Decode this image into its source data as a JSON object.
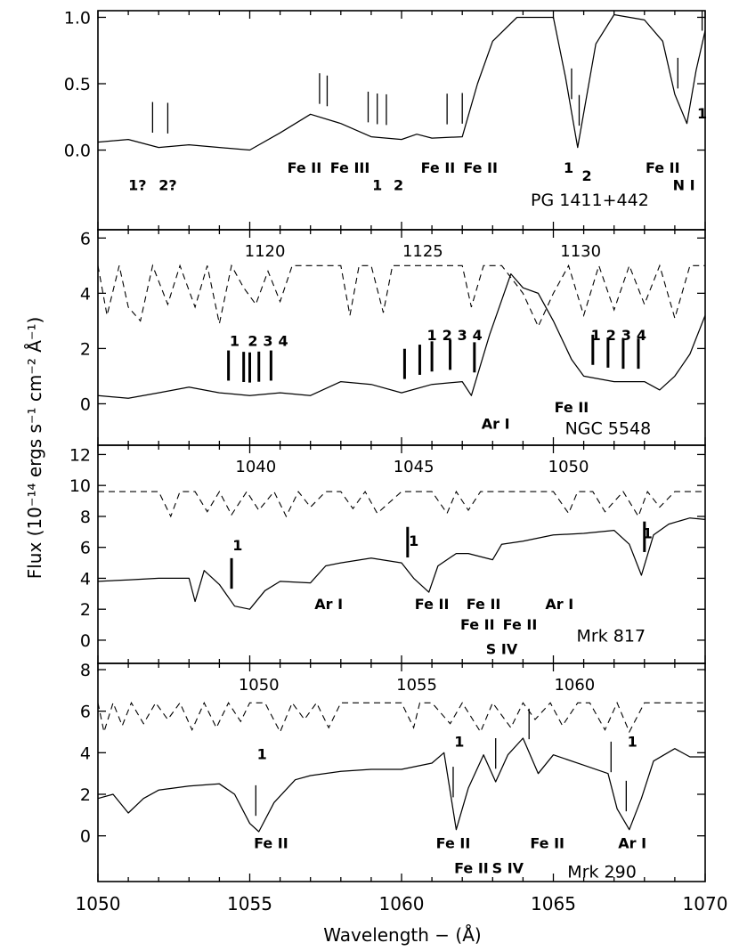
{
  "chart_data": {
    "type": "line",
    "xlabel": "Wavelength − (Å)",
    "ylabel": "Flux (10⁻¹⁴ ergs s⁻¹ cm⁻² Å⁻¹)",
    "x_range": [
      1050,
      1070
    ],
    "x_ticks": [
      "1050",
      "1055",
      "1060",
      "1065",
      "1070"
    ],
    "panels": [
      {
        "name": "PG 1411+442",
        "ylim": [
          -0.6,
          1.05
        ],
        "y_ticks": [
          0.0,
          0.5,
          1.0
        ],
        "y_tick_labels": [
          "0.0",
          "0.5",
          "1.0"
        ],
        "spectrum": {
          "x": [
            1050,
            1051,
            1052,
            1053,
            1054,
            1055,
            1056,
            1057,
            1058,
            1059,
            1060,
            1060.5,
            1061,
            1062,
            1062.5,
            1063,
            1063.8,
            1064.4,
            1065,
            1065.4,
            1065.8,
            1066.4,
            1067,
            1068,
            1068.6,
            1069,
            1069.4,
            1069.7,
            1070
          ],
          "y": [
            0.06,
            0.08,
            0.02,
            0.04,
            0.02,
            0.0,
            0.13,
            0.27,
            0.2,
            0.1,
            0.08,
            0.12,
            0.09,
            0.1,
            0.5,
            0.82,
            1.0,
            1.0,
            1.0,
            0.55,
            0.02,
            0.8,
            1.02,
            0.98,
            0.82,
            0.42,
            0.2,
            0.6,
            0.9
          ]
        },
        "labels": [
          {
            "text": "1?",
            "x": 1051.3,
            "y": -0.3
          },
          {
            "text": "2?",
            "x": 1052.3,
            "y": -0.3
          },
          {
            "text": "Fe II",
            "x": 1056.8,
            "y": -0.17
          },
          {
            "text": "Fe III",
            "x": 1058.3,
            "y": -0.17
          },
          {
            "text": "1",
            "x": 1059.2,
            "y": -0.3
          },
          {
            "text": "2",
            "x": 1059.9,
            "y": -0.3
          },
          {
            "text": "Fe II",
            "x": 1061.2,
            "y": -0.17
          },
          {
            "text": "Fe II",
            "x": 1062.6,
            "y": -0.17
          },
          {
            "text": "1",
            "x": 1065.5,
            "y": -0.17
          },
          {
            "text": "2",
            "x": 1066.1,
            "y": -0.23
          },
          {
            "text": "Fe II",
            "x": 1068.6,
            "y": -0.17
          },
          {
            "text": "N I",
            "x": 1069.3,
            "y": -0.3
          },
          {
            "text": "1",
            "x": 1069.9,
            "y": 0.24
          },
          {
            "text": "PG 1411+442",
            "x": 1066.2,
            "y": -0.42
          }
        ],
        "line_marks": [
          1051.8,
          1052.3,
          1057.3,
          1057.55,
          1058.9,
          1059.2,
          1059.5,
          1061.5,
          1062.0,
          1065.6,
          1065.85,
          1069.1,
          1069.9
        ]
      },
      {
        "name": "NGC 5548",
        "ylim": [
          -1.5,
          6.3
        ],
        "y_ticks": [
          0,
          2,
          4,
          6
        ],
        "y_tick_labels": [
          "0",
          "2",
          "4",
          "6"
        ],
        "top_axis": {
          "labels": [
            "1120",
            "1125",
            "1130"
          ],
          "x": [
            1055.5,
            1060.7,
            1065.9
          ]
        },
        "spectrum": {
          "x": [
            1050,
            1051,
            1052,
            1053,
            1054,
            1055,
            1056,
            1057,
            1058,
            1059,
            1060,
            1061,
            1062,
            1062.3,
            1062.9,
            1063.6,
            1064.0,
            1064.5,
            1065.0,
            1065.6,
            1066.0,
            1067,
            1068,
            1068.5,
            1069,
            1069.5,
            1070
          ],
          "y": [
            0.3,
            0.2,
            0.4,
            0.6,
            0.4,
            0.3,
            0.4,
            0.3,
            0.8,
            0.7,
            0.4,
            0.7,
            0.8,
            0.3,
            2.5,
            4.7,
            4.2,
            4.0,
            3.0,
            1.6,
            1.0,
            0.8,
            0.8,
            0.5,
            1.0,
            1.8,
            3.2
          ]
        },
        "model": {
          "x": [
            1050,
            1050.3,
            1050.7,
            1051.0,
            1051.4,
            1051.8,
            1052.3,
            1052.7,
            1053.2,
            1053.6,
            1054.0,
            1054.4,
            1054.8,
            1055.2,
            1055.6,
            1056.0,
            1056.4,
            1057,
            1058,
            1058.3,
            1058.6,
            1059.0,
            1059.4,
            1059.7,
            1060.1,
            1061,
            1062,
            1062.3,
            1062.7,
            1063.3,
            1064,
            1064.5,
            1065.0,
            1065.5,
            1066.0,
            1066.5,
            1067.0,
            1067.5,
            1068.0,
            1068.5,
            1069.0,
            1069.5,
            1070
          ],
          "y": [
            5.0,
            3.2,
            5.0,
            3.5,
            3.0,
            5.0,
            3.6,
            5.0,
            3.5,
            5.0,
            2.9,
            5.0,
            4.2,
            3.6,
            4.8,
            3.7,
            5.0,
            5.0,
            5.0,
            3.2,
            5.0,
            5.0,
            3.3,
            5.0,
            5.0,
            5.0,
            5.0,
            3.5,
            5.0,
            5.0,
            4.0,
            2.8,
            4.0,
            5.0,
            3.2,
            5.0,
            3.4,
            5.0,
            3.6,
            5.0,
            3.1,
            5.0,
            5.0
          ]
        },
        "labels": [
          {
            "text": "1",
            "x": 1054.5,
            "y": 2.1
          },
          {
            "text": "2",
            "x": 1055.1,
            "y": 2.1
          },
          {
            "text": "3",
            "x": 1055.6,
            "y": 2.1
          },
          {
            "text": "4",
            "x": 1056.1,
            "y": 2.1
          },
          {
            "text": "1",
            "x": 1061.0,
            "y": 2.3
          },
          {
            "text": "2",
            "x": 1061.5,
            "y": 2.3
          },
          {
            "text": "3",
            "x": 1062.0,
            "y": 2.3
          },
          {
            "text": "4",
            "x": 1062.5,
            "y": 2.3
          },
          {
            "text": "1",
            "x": 1066.4,
            "y": 2.3
          },
          {
            "text": "2",
            "x": 1066.9,
            "y": 2.3
          },
          {
            "text": "3",
            "x": 1067.4,
            "y": 2.3
          },
          {
            "text": "4",
            "x": 1067.9,
            "y": 2.3
          },
          {
            "text": "Ar I",
            "x": 1063.1,
            "y": -0.9
          },
          {
            "text": "Fe II",
            "x": 1065.6,
            "y": -0.3
          },
          {
            "text": "NGC 5548",
            "x": 1066.8,
            "y": -1.1
          }
        ],
        "line_marks": [
          1054.3,
          1054.8,
          1055.0,
          1055.3,
          1055.7,
          1060.1,
          1060.6,
          1061.0,
          1061.6,
          1062.4,
          1066.3,
          1066.8,
          1067.3,
          1067.8
        ]
      },
      {
        "name": "Mrk 817",
        "ylim": [
          -1.5,
          12.6
        ],
        "y_ticks": [
          0,
          2,
          4,
          6,
          8,
          10,
          12
        ],
        "y_tick_labels": [
          "0",
          "2",
          "4",
          "6",
          "8",
          "10",
          "12"
        ],
        "top_axis": {
          "labels": [
            "1040",
            "1045",
            "1050"
          ],
          "x": [
            1055.2,
            1060.4,
            1065.5
          ]
        },
        "spectrum": {
          "x": [
            1050,
            1051,
            1052,
            1053,
            1053.2,
            1053.5,
            1054,
            1054.5,
            1055,
            1055.5,
            1056,
            1057,
            1057.5,
            1058,
            1059,
            1060,
            1060.4,
            1060.9,
            1061.2,
            1061.8,
            1062.2,
            1063,
            1063.3,
            1064,
            1065,
            1066,
            1067,
            1067.5,
            1067.9,
            1068.3,
            1068.8,
            1069.5,
            1070
          ],
          "y": [
            3.8,
            3.9,
            4.0,
            4.0,
            2.5,
            4.5,
            3.6,
            2.2,
            2.0,
            3.2,
            3.8,
            3.7,
            4.8,
            5.0,
            5.3,
            5.0,
            4.0,
            3.1,
            4.8,
            5.6,
            5.6,
            5.2,
            6.2,
            6.4,
            6.8,
            6.9,
            7.1,
            6.2,
            4.2,
            6.8,
            7.5,
            7.9,
            7.8
          ]
        },
        "model": {
          "x": [
            1050,
            1051,
            1052,
            1052.4,
            1052.7,
            1053.2,
            1053.6,
            1054.0,
            1054.4,
            1054.9,
            1055.3,
            1055.8,
            1056.2,
            1056.6,
            1057.0,
            1057.5,
            1058,
            1058.4,
            1058.8,
            1059.2,
            1060,
            1061,
            1061.5,
            1061.8,
            1062.2,
            1062.6,
            1063,
            1064,
            1065,
            1065.5,
            1065.8,
            1066.3,
            1066.7,
            1067.3,
            1067.8,
            1068.1,
            1068.5,
            1069,
            1070
          ],
          "y": [
            9.6,
            9.6,
            9.6,
            8.0,
            9.6,
            9.6,
            8.3,
            9.6,
            8.1,
            9.6,
            8.4,
            9.6,
            8.0,
            9.6,
            8.6,
            9.6,
            9.6,
            8.5,
            9.6,
            8.2,
            9.6,
            9.6,
            8.2,
            9.6,
            8.4,
            9.6,
            9.6,
            9.6,
            9.6,
            8.2,
            9.6,
            9.6,
            8.3,
            9.6,
            8.0,
            9.6,
            8.6,
            9.6,
            9.6
          ]
        },
        "labels": [
          {
            "text": "1",
            "x": 1054.6,
            "y": 5.8
          },
          {
            "text": "1",
            "x": 1060.4,
            "y": 6.1
          },
          {
            "text": "1",
            "x": 1068.1,
            "y": 6.6
          },
          {
            "text": "Ar I",
            "x": 1057.6,
            "y": 2.0
          },
          {
            "text": "Fe II",
            "x": 1061.0,
            "y": 2.0
          },
          {
            "text": "Fe II",
            "x": 1062.7,
            "y": 2.0
          },
          {
            "text": "Fe II",
            "x": 1062.5,
            "y": 0.7
          },
          {
            "text": "Fe II",
            "x": 1063.9,
            "y": 0.7
          },
          {
            "text": "Ar I",
            "x": 1065.2,
            "y": 2.0
          },
          {
            "text": "S IV",
            "x": 1063.3,
            "y": -0.9
          },
          {
            "text": "Mrk 817",
            "x": 1066.9,
            "y": -0.1
          }
        ],
        "line_marks": [
          1054.4,
          1060.2,
          1068.0
        ]
      },
      {
        "name": "Mrk 290",
        "ylim": [
          -2.2,
          8.3
        ],
        "y_ticks": [
          0,
          2,
          4,
          6,
          8
        ],
        "y_tick_labels": [
          "0",
          "2",
          "4",
          "6",
          "8"
        ],
        "top_axis": {
          "labels": [
            "1050",
            "1055",
            "1060"
          ],
          "x": [
            1055.3,
            1060.5,
            1065.7
          ]
        },
        "spectrum": {
          "x": [
            1050,
            1050.5,
            1051,
            1051.5,
            1052,
            1053,
            1054,
            1054.5,
            1055,
            1055.3,
            1055.8,
            1056.5,
            1057,
            1058,
            1059,
            1060,
            1061,
            1061.4,
            1061.8,
            1062.2,
            1062.7,
            1063.1,
            1063.5,
            1064.0,
            1064.5,
            1065.0,
            1066,
            1066.8,
            1067.1,
            1067.5,
            1067.9,
            1068.3,
            1069,
            1069.5,
            1070
          ],
          "y": [
            1.8,
            2.0,
            1.1,
            1.8,
            2.2,
            2.4,
            2.5,
            2.0,
            0.6,
            0.2,
            1.6,
            2.7,
            2.9,
            3.1,
            3.2,
            3.2,
            3.5,
            4.0,
            0.3,
            2.3,
            3.9,
            2.6,
            3.9,
            4.7,
            3.0,
            3.9,
            3.4,
            3.0,
            1.3,
            0.3,
            1.8,
            3.6,
            4.2,
            3.8,
            3.8
          ]
        },
        "model": {
          "x": [
            1050,
            1050.2,
            1050.5,
            1050.8,
            1051.1,
            1051.5,
            1051.9,
            1052.3,
            1052.7,
            1053.1,
            1053.5,
            1053.9,
            1054.3,
            1054.7,
            1055,
            1055.5,
            1056.0,
            1056.4,
            1056.8,
            1057.2,
            1057.6,
            1058,
            1059,
            1060,
            1060.4,
            1060.6,
            1061,
            1061.6,
            1062,
            1062.6,
            1063,
            1063.6,
            1064,
            1064.4,
            1064.9,
            1065.3,
            1065.8,
            1066.2,
            1066.7,
            1067.1,
            1067.5,
            1068,
            1069,
            1070
          ],
          "y": [
            6.4,
            5.0,
            6.4,
            5.3,
            6.4,
            5.4,
            6.4,
            5.6,
            6.4,
            5.1,
            6.4,
            5.2,
            6.4,
            5.5,
            6.4,
            6.4,
            5.0,
            6.4,
            5.6,
            6.4,
            5.2,
            6.4,
            6.4,
            6.4,
            5.2,
            6.4,
            6.4,
            5.4,
            6.4,
            5.0,
            6.4,
            5.2,
            6.4,
            5.6,
            6.4,
            5.3,
            6.4,
            6.4,
            5.1,
            6.4,
            5.0,
            6.4,
            6.4,
            6.4
          ]
        },
        "labels": [
          {
            "text": "1",
            "x": 1055.4,
            "y": 3.7
          },
          {
            "text": "1",
            "x": 1061.9,
            "y": 4.3
          },
          {
            "text": "1",
            "x": 1067.6,
            "y": 4.3
          },
          {
            "text": "Fe II",
            "x": 1055.7,
            "y": -0.6
          },
          {
            "text": "Fe II",
            "x": 1061.7,
            "y": -0.6
          },
          {
            "text": "Fe II",
            "x": 1062.3,
            "y": -1.8
          },
          {
            "text": "S IV",
            "x": 1063.5,
            "y": -1.8
          },
          {
            "text": "Fe II",
            "x": 1064.8,
            "y": -0.6
          },
          {
            "text": "Ar I",
            "x": 1067.6,
            "y": -0.6
          },
          {
            "text": "Mrk 290",
            "x": 1066.6,
            "y": -2.0
          }
        ],
        "line_marks": [
          1055.2,
          1061.7,
          1063.1,
          1064.2,
          1066.9,
          1067.4
        ]
      }
    ]
  }
}
